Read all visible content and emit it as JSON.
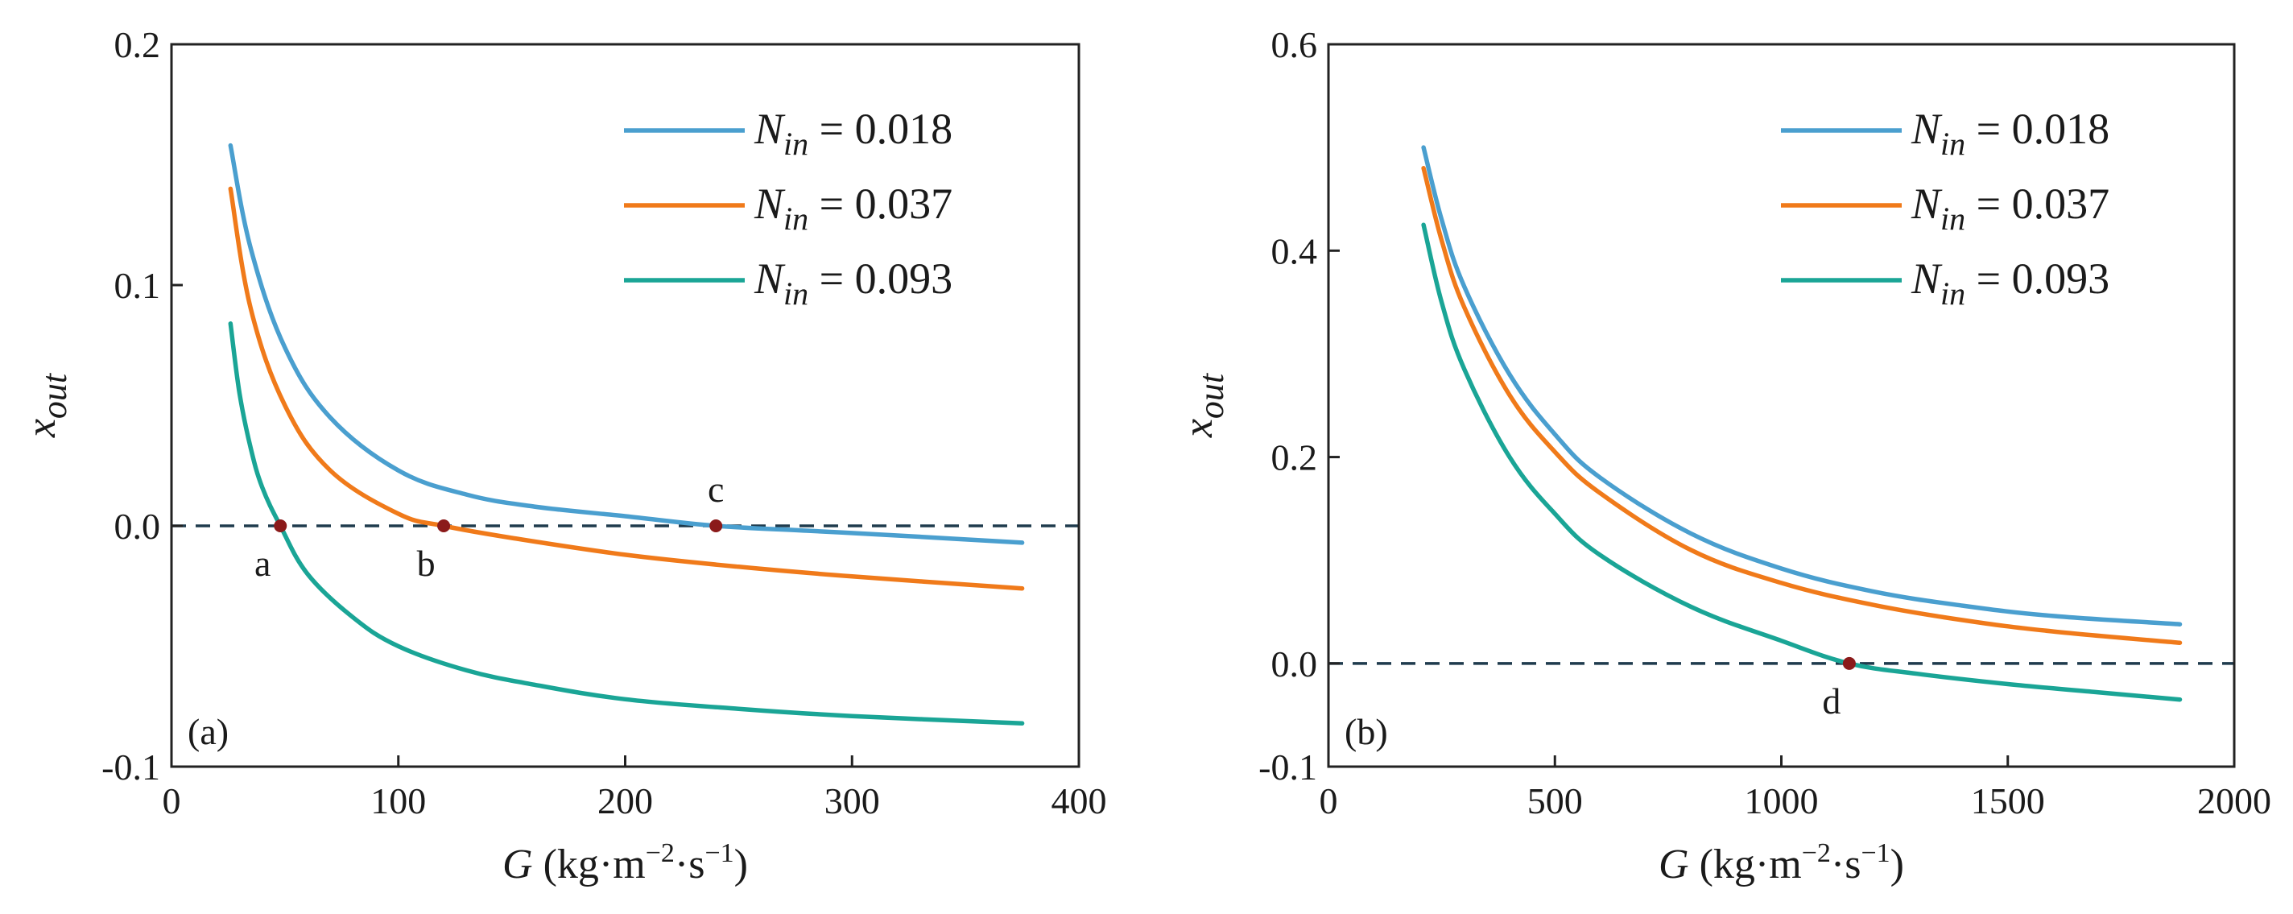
{
  "figure": {
    "colors": {
      "series_1": "#4a9fcf",
      "series_2": "#f07a1a",
      "series_3": "#1aa596",
      "marker": "#8b1a1a",
      "dashed": "#1f3b4d"
    },
    "legend_prefix": "N",
    "legend_subscript": "in",
    "legend_values": [
      "= 0.018",
      "= 0.037",
      "= 0.093"
    ]
  },
  "chart_data": [
    {
      "type": "line",
      "panel_label": "(a)",
      "xlabel_symbol": "G",
      "xlabel_units": "(kg·m",
      "xlabel_exp1": "−2",
      "xlabel_mid": "·s",
      "xlabel_exp2": "−1",
      "xlabel_close": ")",
      "ylabel_base": "x",
      "ylabel_sub": "out",
      "xlim": [
        0,
        400
      ],
      "ylim": [
        -0.1,
        0.2
      ],
      "xticks": [
        0,
        100,
        200,
        300,
        400
      ],
      "xtick_labels": [
        "0",
        "100",
        "200",
        "300",
        "400"
      ],
      "yticks": [
        -0.1,
        0.0,
        0.1,
        0.2
      ],
      "ytick_labels": [
        "-0.1",
        "0.0",
        "0.1",
        "0.2"
      ],
      "reference_line_y": 0.0,
      "series": [
        {
          "name": "N_in = 0.018",
          "x": [
            26,
            35,
            50,
            70,
            100,
            130,
            160,
            200,
            240,
            280,
            320,
            375
          ],
          "y": [
            0.158,
            0.115,
            0.074,
            0.045,
            0.023,
            0.013,
            0.008,
            0.004,
            0.0,
            -0.002,
            -0.004,
            -0.007
          ]
        },
        {
          "name": "N_in = 0.037",
          "x": [
            26,
            35,
            50,
            70,
            100,
            120,
            150,
            200,
            250,
            300,
            375
          ],
          "y": [
            0.14,
            0.09,
            0.05,
            0.023,
            0.005,
            0.0,
            -0.005,
            -0.012,
            -0.017,
            -0.021,
            -0.026
          ]
        },
        {
          "name": "N_in = 0.093",
          "x": [
            26,
            30,
            35,
            40,
            48,
            60,
            80,
            100,
            130,
            160,
            200,
            250,
            300,
            375
          ],
          "y": [
            0.084,
            0.055,
            0.032,
            0.016,
            0.0,
            -0.02,
            -0.038,
            -0.05,
            -0.06,
            -0.066,
            -0.072,
            -0.076,
            -0.079,
            -0.082
          ]
        }
      ],
      "points": [
        {
          "label": "a",
          "x": 48,
          "y": 0.0,
          "label_pos": "below"
        },
        {
          "label": "b",
          "x": 120,
          "y": 0.0,
          "label_pos": "below"
        },
        {
          "label": "c",
          "x": 240,
          "y": 0.0,
          "label_pos": "above"
        }
      ]
    },
    {
      "type": "line",
      "panel_label": "(b)",
      "xlabel_symbol": "G",
      "xlabel_units": "(kg·m",
      "xlabel_exp1": "−2",
      "xlabel_mid": "·s",
      "xlabel_exp2": "−1",
      "xlabel_close": ")",
      "ylabel_base": "x",
      "ylabel_sub": "out",
      "xlim": [
        0,
        2000
      ],
      "ylim": [
        -0.1,
        0.6
      ],
      "xticks": [
        0,
        500,
        1000,
        1500,
        2000
      ],
      "xtick_labels": [
        "0",
        "500",
        "1000",
        "1500",
        "2000"
      ],
      "yticks": [
        -0.1,
        0.0,
        0.2,
        0.4,
        0.6
      ],
      "ytick_labels": [
        "-0.1",
        "0.0",
        "0.2",
        "0.4",
        "0.6"
      ],
      "reference_line_y": 0.0,
      "series": [
        {
          "name": "N_in = 0.018",
          "x": [
            210,
            250,
            300,
            400,
            500,
            600,
            800,
            1000,
            1200,
            1400,
            1600,
            1880
          ],
          "y": [
            0.5,
            0.43,
            0.365,
            0.28,
            0.222,
            0.18,
            0.126,
            0.092,
            0.07,
            0.056,
            0.046,
            0.038
          ]
        },
        {
          "name": "N_in = 0.037",
          "x": [
            210,
            250,
            300,
            400,
            500,
            600,
            800,
            1000,
            1200,
            1400,
            1600,
            1880
          ],
          "y": [
            0.48,
            0.41,
            0.345,
            0.26,
            0.205,
            0.165,
            0.11,
            0.078,
            0.057,
            0.042,
            0.031,
            0.02
          ]
        },
        {
          "name": "N_in = 0.093",
          "x": [
            210,
            250,
            300,
            400,
            500,
            600,
            800,
            1000,
            1150,
            1300,
            1500,
            1700,
            1880
          ],
          "y": [
            0.425,
            0.35,
            0.285,
            0.2,
            0.145,
            0.105,
            0.055,
            0.022,
            0.0,
            -0.01,
            -0.02,
            -0.028,
            -0.035
          ]
        }
      ],
      "points": [
        {
          "label": "d",
          "x": 1150,
          "y": 0.0,
          "label_pos": "below"
        }
      ]
    }
  ]
}
